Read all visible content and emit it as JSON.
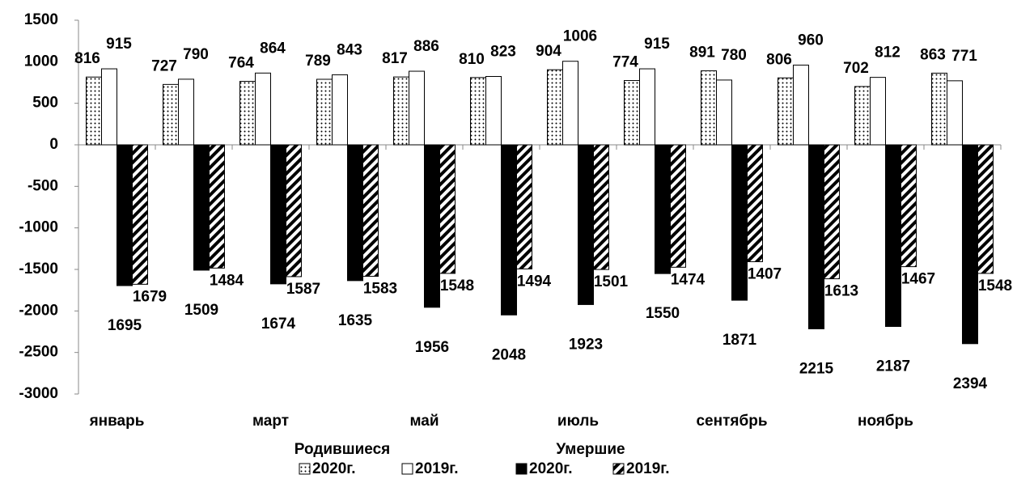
{
  "chart_data": {
    "type": "bar",
    "categories": [
      "январь",
      null,
      "март",
      null,
      "май",
      null,
      "июль",
      null,
      "сентябрь",
      null,
      "ноябрь",
      null
    ],
    "legend_groups": [
      "Родившиеся",
      "Умершие"
    ],
    "series": [
      {
        "name": "2020г.",
        "color": "#000000",
        "pattern": "dots",
        "values": [
          816,
          727,
          764,
          789,
          817,
          810,
          904,
          774,
          891,
          806,
          702,
          863
        ]
      },
      {
        "name": "2019г.",
        "color": "#000000",
        "pattern": "none",
        "values": [
          915,
          790,
          864,
          843,
          886,
          823,
          1006,
          915,
          780,
          960,
          812,
          771
        ]
      },
      {
        "name": "2020г.",
        "color": "#000000",
        "pattern": "solid",
        "values": [
          -1695,
          -1509,
          -1674,
          -1635,
          -1956,
          -2048,
          -1923,
          -1550,
          -1871,
          -2215,
          -2187,
          -2394
        ],
        "value_labels": [
          "1695",
          "1509",
          "1674",
          "1635",
          "1956",
          "2048",
          "1923",
          "1550",
          "1871",
          "2215",
          "2187",
          "2394"
        ]
      },
      {
        "name": "2019г.",
        "color": "#000000",
        "pattern": "stripes",
        "values": [
          -1679,
          -1484,
          -1587,
          -1583,
          -1548,
          -1494,
          -1501,
          -1474,
          -1407,
          -1613,
          -1467,
          -1548
        ],
        "value_labels": [
          "1679",
          "1484",
          "1587",
          "1583",
          "1548",
          "1494",
          "1501",
          "1474",
          "1407",
          "1613",
          "1467",
          "1548"
        ]
      }
    ],
    "ylim": [
      -3000,
      1500
    ],
    "yticks": [
      -3000,
      -2500,
      -2000,
      -1500,
      -1000,
      -500,
      0,
      500,
      1000,
      1500
    ]
  }
}
